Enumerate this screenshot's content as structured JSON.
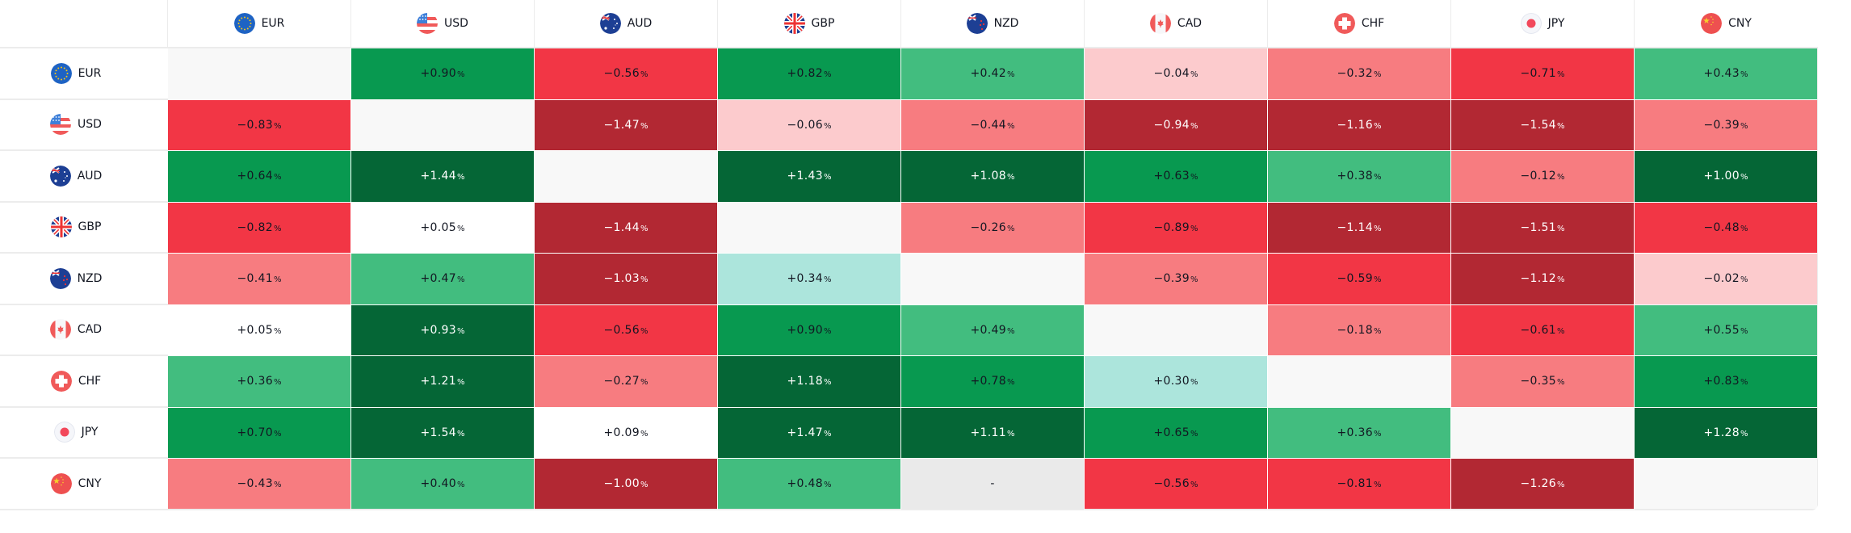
{
  "chart_data": {
    "type": "heatmap",
    "title": "",
    "unit": "%",
    "currencies": [
      "EUR",
      "USD",
      "AUD",
      "GBP",
      "NZD",
      "CAD",
      "CHF",
      "JPY",
      "CNY"
    ],
    "rows": [
      "EUR",
      "USD",
      "AUD",
      "GBP",
      "NZD",
      "CAD",
      "CHF",
      "JPY",
      "CNY"
    ],
    "columns": [
      "EUR",
      "USD",
      "AUD",
      "GBP",
      "NZD",
      "CAD",
      "CHF",
      "JPY",
      "CNY"
    ],
    "values": [
      [
        null,
        0.9,
        -0.56,
        0.82,
        0.42,
        -0.04,
        -0.32,
        -0.71,
        0.43
      ],
      [
        -0.83,
        null,
        -1.47,
        -0.06,
        -0.44,
        -0.94,
        -1.16,
        -1.54,
        -0.39
      ],
      [
        0.64,
        1.44,
        null,
        1.43,
        1.08,
        0.63,
        0.38,
        -0.12,
        1.0
      ],
      [
        -0.82,
        0.05,
        -1.44,
        null,
        -0.26,
        -0.89,
        -1.14,
        -1.51,
        -0.48
      ],
      [
        -0.41,
        0.47,
        -1.03,
        0.34,
        null,
        -0.39,
        -0.59,
        -1.12,
        -0.02
      ],
      [
        0.05,
        0.93,
        -0.56,
        0.9,
        0.49,
        null,
        -0.18,
        -0.61,
        0.55
      ],
      [
        0.36,
        1.21,
        -0.27,
        1.18,
        0.78,
        0.3,
        null,
        -0.35,
        0.83
      ],
      [
        0.7,
        1.54,
        0.09,
        1.47,
        1.11,
        0.65,
        0.36,
        null,
        1.28
      ],
      [
        -0.43,
        0.4,
        -1.0,
        0.48,
        "-",
        -0.56,
        -0.81,
        -1.26,
        null
      ]
    ],
    "labels": [
      [
        "",
        "+0.90",
        "−0.56",
        "+0.82",
        "+0.42",
        "−0.04",
        "−0.32",
        "−0.71",
        "+0.43"
      ],
      [
        "−0.83",
        "",
        "−1.47",
        "−0.06",
        "−0.44",
        "−0.94",
        "−1.16",
        "−1.54",
        "−0.39"
      ],
      [
        "+0.64",
        "+1.44",
        "",
        "+1.43",
        "+1.08",
        "+0.63",
        "+0.38",
        "−0.12",
        "+1.00"
      ],
      [
        "−0.82",
        "+0.05",
        "−1.44",
        "",
        "−0.26",
        "−0.89",
        "−1.14",
        "−1.51",
        "−0.48"
      ],
      [
        "−0.41",
        "+0.47",
        "−1.03",
        "+0.34",
        "",
        "−0.39",
        "−0.59",
        "−1.12",
        "−0.02"
      ],
      [
        "+0.05",
        "+0.93",
        "−0.56",
        "+0.90",
        "+0.49",
        "",
        "−0.18",
        "−0.61",
        "+0.55"
      ],
      [
        "+0.36",
        "+1.21",
        "−0.27",
        "+1.18",
        "+0.78",
        "+0.30",
        "",
        "−0.35",
        "+0.83"
      ],
      [
        "+0.70",
        "+1.54",
        "+0.09",
        "+1.47",
        "+1.11",
        "+0.65",
        "+0.36",
        "",
        "+1.28"
      ],
      [
        "−0.43",
        "+0.40",
        "−1.00",
        "+0.48",
        "-",
        "−0.56",
        "−0.81",
        "−1.26",
        ""
      ]
    ],
    "color_class": [
      [
        "diag",
        "g3",
        "r3",
        "g3",
        "g2",
        "r1",
        "r2",
        "r3",
        "g2"
      ],
      [
        "r3",
        "diag",
        "r4",
        "r1",
        "r2",
        "r4",
        "r4",
        "r4",
        "r2"
      ],
      [
        "g3",
        "g4",
        "diag",
        "g4",
        "g4",
        "g3",
        "g2",
        "r2",
        "g4"
      ],
      [
        "r3",
        "n",
        "r4",
        "diag",
        "r2",
        "r3",
        "r4",
        "r4",
        "r3"
      ],
      [
        "r2",
        "g2",
        "r4",
        "g1",
        "diag",
        "r2",
        "r3",
        "r4",
        "r1"
      ],
      [
        "n",
        "g4",
        "r3",
        "g3",
        "g2",
        "diag",
        "r2",
        "r3",
        "g2"
      ],
      [
        "g2",
        "g4",
        "r2",
        "g4",
        "g3",
        "g1",
        "diag",
        "r2",
        "g3"
      ],
      [
        "g3",
        "g4",
        "n",
        "g4",
        "g4",
        "g3",
        "g2",
        "diag",
        "g4"
      ],
      [
        "r2",
        "g2",
        "r4",
        "g2",
        "nodata",
        "r3",
        "r3",
        "r4",
        "diag"
      ]
    ],
    "palette": {
      "r4": "#b22833",
      "r3": "#f23645",
      "r2": "#f77c80",
      "r1": "#fccbcd",
      "n": "#ffffff",
      "g1": "#ace5dc",
      "g2": "#42bd7f",
      "g3": "#089950",
      "g4": "#056636",
      "diag": "#f8f8f8",
      "nodata": "#eaeaea"
    },
    "legend": "none",
    "grid": true
  },
  "header": {
    "corner": ""
  },
  "icons": {
    "EUR": "eu-flag-icon",
    "USD": "us-flag-icon",
    "AUD": "au-flag-icon",
    "GBP": "gb-flag-icon",
    "NZD": "nz-flag-icon",
    "CAD": "ca-flag-icon",
    "CHF": "ch-flag-icon",
    "JPY": "jp-flag-icon",
    "CNY": "cn-flag-icon"
  },
  "percent_sign": "%"
}
